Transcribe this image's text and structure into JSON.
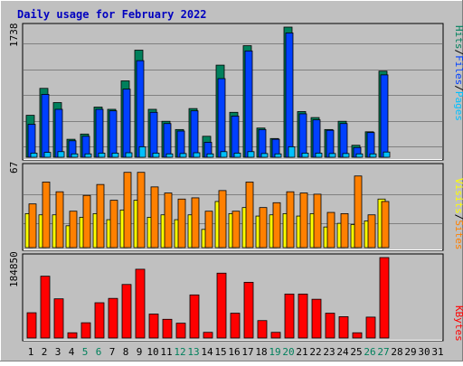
{
  "title": "Daily usage for February 2022",
  "colors": {
    "background": "#c0c0c0",
    "title": "#0000c0",
    "hits": "#00805c",
    "files": "#0040ff",
    "pages": "#00c0ff",
    "visits": "#ffff00",
    "sites": "#ff8000",
    "kbytes": "#ff0000",
    "weekend_label": "#00805c",
    "weekday_label": "#000000"
  },
  "chart_data": [
    {
      "type": "bar",
      "panel": "hits",
      "ymax_label": "1738",
      "ymax": 1738,
      "side_label": [
        {
          "text": "Hits",
          "color": "#00805c"
        },
        {
          "text": "/",
          "color": "#000000"
        },
        {
          "text": "Files",
          "color": "#0040ff"
        },
        {
          "text": "/",
          "color": "#000000"
        },
        {
          "text": "Pages",
          "color": "#00c0ff"
        }
      ],
      "series": [
        {
          "name": "Hits",
          "color": "#00805c",
          "values": [
            560,
            920,
            730,
            240,
            310,
            670,
            640,
            1020,
            1430,
            640,
            480,
            370,
            650,
            280,
            1230,
            600,
            1490,
            390,
            250,
            1738,
            610,
            530,
            370,
            480,
            160,
            340,
            1150,
            0,
            0,
            0,
            0
          ]
        },
        {
          "name": "Files",
          "color": "#0040ff",
          "values": [
            440,
            840,
            640,
            220,
            280,
            640,
            620,
            910,
            1290,
            600,
            450,
            350,
            620,
            200,
            1050,
            550,
            1420,
            370,
            240,
            1660,
            580,
            500,
            360,
            450,
            130,
            330,
            1100,
            0,
            0,
            0,
            0
          ]
        },
        {
          "name": "Pages",
          "color": "#00c0ff",
          "values": [
            55,
            65,
            75,
            45,
            45,
            55,
            55,
            60,
            140,
            55,
            45,
            50,
            60,
            45,
            75,
            55,
            75,
            50,
            45,
            140,
            55,
            55,
            50,
            50,
            45,
            45,
            70,
            0,
            0,
            0,
            0
          ]
        }
      ]
    },
    {
      "type": "bar",
      "panel": "sites-visits",
      "ymax_label": "67",
      "ymax": 67,
      "side_label": [
        {
          "text": "Visits",
          "color": "#ffff00"
        },
        {
          "text": "/",
          "color": "#000000"
        },
        {
          "text": "Sites",
          "color": "#ff8000"
        }
      ],
      "series": [
        {
          "name": "Visits",
          "color": "#ffff00",
          "values": [
            28,
            27,
            27,
            18,
            25,
            28,
            23,
            31,
            39,
            25,
            27,
            23,
            27,
            15,
            38,
            28,
            33,
            26,
            27,
            28,
            26,
            28,
            17,
            20,
            19,
            22,
            40,
            0,
            0,
            0,
            0
          ]
        },
        {
          "name": "Sites",
          "color": "#ff8000",
          "values": [
            36,
            54,
            46,
            30,
            43,
            52,
            39,
            62,
            62,
            50,
            45,
            40,
            41,
            30,
            47,
            30,
            54,
            33,
            37,
            46,
            45,
            44,
            29,
            28,
            59,
            27,
            38,
            0,
            0,
            0,
            0
          ]
        }
      ]
    },
    {
      "type": "bar",
      "panel": "kbytes",
      "ymax_label": "184850",
      "ymax": 184850,
      "side_label": [
        {
          "text": "KBytes",
          "color": "#ff0000"
        }
      ],
      "series": [
        {
          "name": "KBytes",
          "color": "#ff0000",
          "values": [
            58000,
            142000,
            90000,
            12000,
            35000,
            81000,
            91000,
            123000,
            158000,
            55000,
            43000,
            34000,
            99000,
            13000,
            149000,
            57000,
            128000,
            40000,
            13000,
            101000,
            101000,
            89000,
            57000,
            49000,
            12000,
            48000,
            184850,
            0,
            0,
            0,
            0
          ]
        }
      ]
    }
  ],
  "x_labels": [
    {
      "day": "1",
      "weekend": false
    },
    {
      "day": "2",
      "weekend": false
    },
    {
      "day": "3",
      "weekend": false
    },
    {
      "day": "4",
      "weekend": false
    },
    {
      "day": "5",
      "weekend": true
    },
    {
      "day": "6",
      "weekend": true
    },
    {
      "day": "7",
      "weekend": false
    },
    {
      "day": "8",
      "weekend": false
    },
    {
      "day": "9",
      "weekend": false
    },
    {
      "day": "10",
      "weekend": false
    },
    {
      "day": "11",
      "weekend": false
    },
    {
      "day": "12",
      "weekend": true
    },
    {
      "day": "13",
      "weekend": true
    },
    {
      "day": "14",
      "weekend": false
    },
    {
      "day": "15",
      "weekend": false
    },
    {
      "day": "16",
      "weekend": false
    },
    {
      "day": "17",
      "weekend": false
    },
    {
      "day": "18",
      "weekend": false
    },
    {
      "day": "19",
      "weekend": true
    },
    {
      "day": "20",
      "weekend": true
    },
    {
      "day": "21",
      "weekend": false
    },
    {
      "day": "22",
      "weekend": false
    },
    {
      "day": "23",
      "weekend": false
    },
    {
      "day": "24",
      "weekend": false
    },
    {
      "day": "25",
      "weekend": false
    },
    {
      "day": "26",
      "weekend": true
    },
    {
      "day": "27",
      "weekend": true
    },
    {
      "day": "28",
      "weekend": false
    },
    {
      "day": "29",
      "weekend": false
    },
    {
      "day": "30",
      "weekend": false
    },
    {
      "day": "31",
      "weekend": false
    }
  ]
}
